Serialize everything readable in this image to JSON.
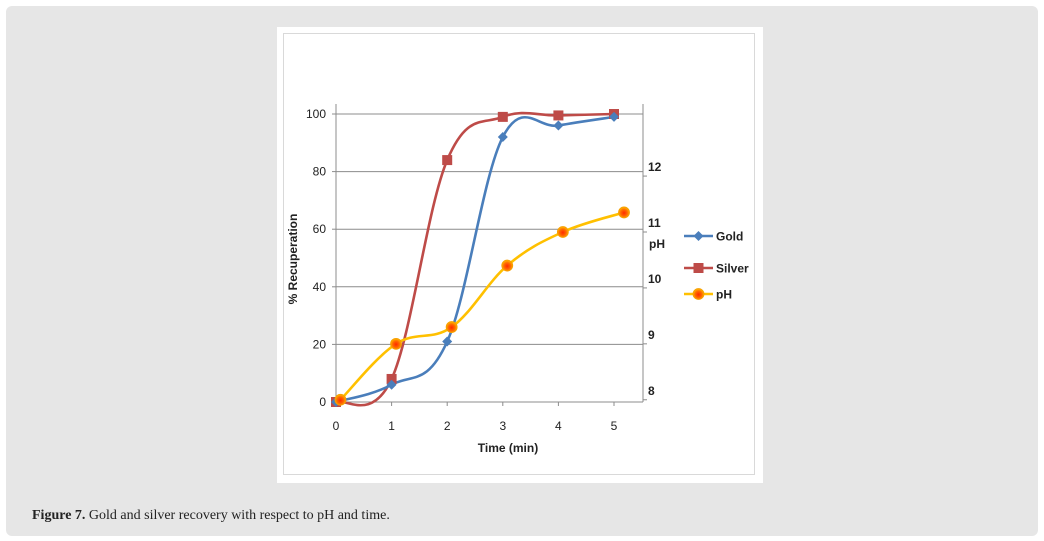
{
  "chart_data": {
    "type": "line",
    "title": "",
    "xlabel": "Time (min)",
    "ylabel": "% Recuperation",
    "y2label": "pH",
    "x": [
      0,
      1,
      2,
      3,
      4,
      5
    ],
    "xticks": [
      "0",
      "1",
      "2",
      "3",
      "4",
      "5"
    ],
    "xlim": [
      0,
      5.5
    ],
    "ylim": [
      0,
      100
    ],
    "yticks": [
      "0",
      "20",
      "40",
      "60",
      "80",
      "100"
    ],
    "y2lim": [
      7.96,
      13.11
    ],
    "y2ticks": [
      "8",
      "9",
      "10",
      "11",
      "12"
    ],
    "grid": true,
    "legend_position": "right",
    "series": [
      {
        "name": "Gold",
        "axis": "left",
        "color": "#4a7ebb",
        "marker": "diamond",
        "x": [
          0,
          1,
          2,
          3,
          4,
          5
        ],
        "values": [
          0,
          6,
          21,
          92,
          96,
          99
        ]
      },
      {
        "name": "Silver",
        "axis": "left",
        "color": "#be4b48",
        "marker": "square",
        "x": [
          0,
          1,
          2,
          3,
          4,
          5
        ],
        "values": [
          0,
          8,
          84,
          99,
          99.5,
          100
        ]
      },
      {
        "name": "pH",
        "axis": "right",
        "color": "#ffc000",
        "marker": "circle",
        "x": [
          0.08,
          1.08,
          2.08,
          3.08,
          4.08,
          5.18
        ],
        "values": [
          8,
          9,
          9.3,
          10.4,
          11,
          11.35
        ]
      }
    ]
  },
  "caption": {
    "label": "Figure 7.",
    "text": " Gold and silver recovery with respect to pH and time."
  }
}
